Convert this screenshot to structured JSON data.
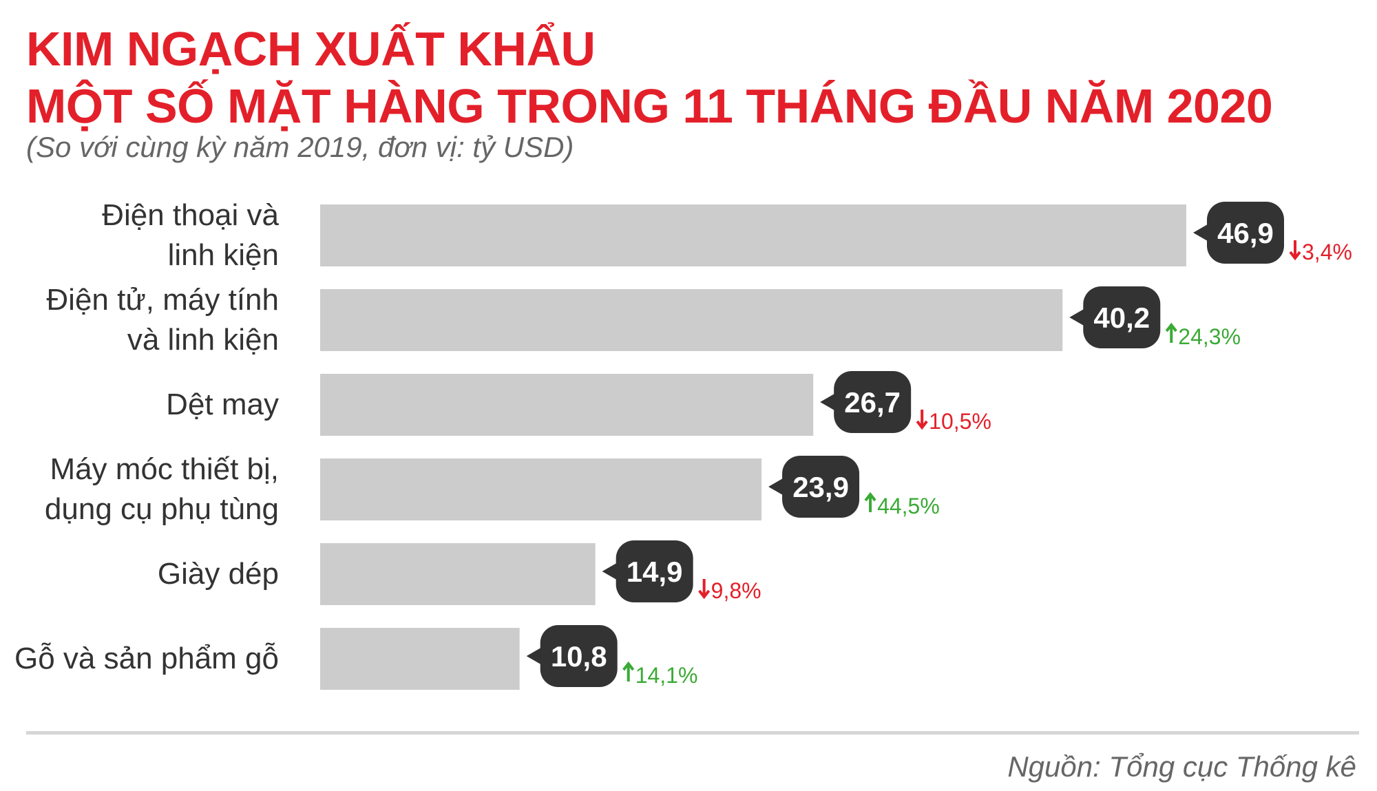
{
  "header": {
    "title_line1": "KIM NGẠCH XUẤT KHẨU",
    "title_line2": "MỘT SỐ MẶT HÀNG TRONG 11 THÁNG ĐẦU NĂM 2020",
    "subtitle": "(So với cùng kỳ năm 2019, đơn vị: tỷ USD)"
  },
  "footer": {
    "source": "Nguồn: Tổng cục Thống kê"
  },
  "colors": {
    "title": "#e3202a",
    "bar": "#cccccc",
    "bubble": "#333333",
    "decrease": "#e3202a",
    "increase": "#3aaa35"
  },
  "chart_data": {
    "type": "bar",
    "orientation": "horizontal",
    "categories": [
      [
        "Điện thoại và",
        "linh kiện"
      ],
      [
        "Điện tử, máy tính",
        "và linh kiện"
      ],
      [
        "Dệt may"
      ],
      [
        "Máy móc thiết bị,",
        "dụng cụ phụ tùng"
      ],
      [
        "Giày dép"
      ],
      [
        "Gỗ và sản phẩm gỗ"
      ]
    ],
    "values": [
      46.9,
      40.2,
      26.7,
      23.9,
      14.9,
      10.8
    ],
    "value_labels": [
      "46,9",
      "40,2",
      "26,7",
      "23,9",
      "14,9",
      "10,8"
    ],
    "changes": [
      {
        "direction": "down",
        "label": "3,4%"
      },
      {
        "direction": "up",
        "label": "24,3%"
      },
      {
        "direction": "down",
        "label": "10,5%"
      },
      {
        "direction": "up",
        "label": "44,5%"
      },
      {
        "direction": "down",
        "label": "9,8%"
      },
      {
        "direction": "up",
        "label": "14,1%"
      }
    ],
    "xlim": [
      0,
      46.9
    ],
    "grid": false,
    "title": "KIM NGẠCH XUẤT KHẨU MỘT SỐ MẶT HÀNG TRONG 11 THÁNG ĐẦU NĂM 2020",
    "subtitle": "(So với cùng kỳ năm 2019, đơn vị: tỷ USD)"
  }
}
